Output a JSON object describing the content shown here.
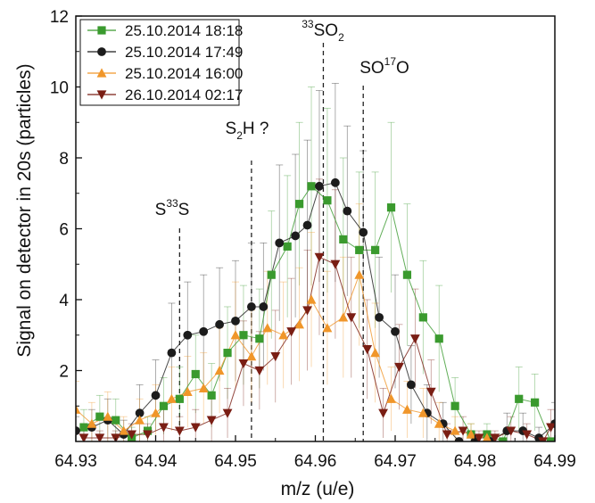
{
  "chart_data": {
    "type": "scatter",
    "title": "",
    "xlabel": "m/z (u/e)",
    "ylabel": "Signal on detector in 20s (particles)",
    "xlim": [
      64.93,
      64.99
    ],
    "ylim": [
      0,
      12
    ],
    "x_ticks": [
      64.93,
      64.94,
      64.95,
      64.96,
      64.97,
      64.98,
      64.99
    ],
    "x_tick_labels": [
      "64.93",
      "64.94",
      "64.95",
      "64.96",
      "64.97",
      "64.98",
      "64.99"
    ],
    "y_ticks": [
      2,
      4,
      6,
      8,
      10,
      12
    ],
    "y_tick_labels": [
      "2",
      "4",
      "6",
      "8",
      "10",
      "12"
    ],
    "grid": false,
    "legend_position": "top-left",
    "series": [
      {
        "name": "25.10.2014 18:18",
        "color": "#3a9a2e",
        "marker": "square",
        "points": [
          [
            64.931,
            0.4
          ],
          [
            64.933,
            0.7
          ],
          [
            64.935,
            0.6
          ],
          [
            64.937,
            0.1
          ],
          [
            64.939,
            0.3
          ],
          [
            64.941,
            1.0
          ],
          [
            64.943,
            1.2
          ],
          [
            64.945,
            1.9
          ],
          [
            64.947,
            1.3
          ],
          [
            64.949,
            2.5
          ],
          [
            64.951,
            3.0
          ],
          [
            64.953,
            2.9
          ],
          [
            64.9545,
            4.7
          ],
          [
            64.9565,
            5.5
          ],
          [
            64.958,
            6.7
          ],
          [
            64.9595,
            7.2
          ],
          [
            64.9615,
            6.8
          ],
          [
            64.9635,
            5.7
          ],
          [
            64.9655,
            5.4
          ],
          [
            64.9675,
            5.4
          ],
          [
            64.9695,
            6.6
          ],
          [
            64.9715,
            4.7
          ],
          [
            64.9735,
            3.5
          ],
          [
            64.9755,
            2.9
          ],
          [
            64.9775,
            1.0
          ],
          [
            64.9795,
            0.2
          ],
          [
            64.9815,
            0.2
          ],
          [
            64.9835,
            0.0
          ],
          [
            64.9855,
            1.2
          ],
          [
            64.9875,
            1.1
          ],
          [
            64.9895,
            0.0
          ]
        ],
        "errors": [
          0.5,
          0.6,
          0.6,
          0.3,
          0.4,
          0.8,
          0.9,
          1.1,
          0.9,
          1.3,
          1.4,
          1.4,
          1.8,
          2.0,
          2.3,
          2.8,
          2.6,
          2.3,
          2.2,
          2.2,
          2.4,
          2.0,
          1.6,
          1.5,
          0.8,
          0.3,
          0.3,
          0.2,
          0.9,
          0.8,
          0.1
        ]
      },
      {
        "name": "25.10.2014 17:49",
        "color": "#1c1c1c",
        "marker": "circle",
        "points": [
          [
            64.93,
            0.3
          ],
          [
            64.932,
            0.4
          ],
          [
            64.934,
            0.6
          ],
          [
            64.936,
            0.2
          ],
          [
            64.938,
            0.8
          ],
          [
            64.94,
            1.3
          ],
          [
            64.942,
            2.5
          ],
          [
            64.944,
            3.0
          ],
          [
            64.946,
            3.1
          ],
          [
            64.948,
            3.3
          ],
          [
            64.95,
            3.4
          ],
          [
            64.952,
            3.8
          ],
          [
            64.9535,
            3.8
          ],
          [
            64.9555,
            5.6
          ],
          [
            64.9575,
            5.8
          ],
          [
            64.959,
            6.1
          ],
          [
            64.9605,
            7.2
          ],
          [
            64.9625,
            7.3
          ],
          [
            64.964,
            6.5
          ],
          [
            64.966,
            5.9
          ],
          [
            64.968,
            3.5
          ],
          [
            64.97,
            3.1
          ],
          [
            64.972,
            1.6
          ],
          [
            64.974,
            0.8
          ],
          [
            64.976,
            0.5
          ],
          [
            64.978,
            0.0
          ],
          [
            64.98,
            0.0
          ],
          [
            64.982,
            0.0
          ],
          [
            64.984,
            0.3
          ],
          [
            64.986,
            0.3
          ],
          [
            64.988,
            0.1
          ],
          [
            64.99,
            0.5
          ]
        ],
        "errors": [
          0.4,
          0.5,
          0.6,
          0.4,
          0.8,
          1.0,
          1.4,
          1.5,
          1.6,
          1.6,
          1.7,
          1.8,
          1.8,
          2.2,
          2.3,
          2.4,
          2.7,
          2.8,
          2.4,
          2.3,
          1.7,
          1.6,
          1.1,
          0.8,
          0.6,
          0.1,
          0.1,
          0.1,
          0.5,
          0.5,
          0.3,
          0.6
        ]
      },
      {
        "name": "25.10.2014 16:00",
        "color": "#f0962a",
        "marker": "triangle-up",
        "points": [
          [
            64.93,
            0.9
          ],
          [
            64.932,
            0.5
          ],
          [
            64.934,
            0.7
          ],
          [
            64.936,
            0.3
          ],
          [
            64.938,
            0.6
          ],
          [
            64.94,
            0.8
          ],
          [
            64.942,
            1.2
          ],
          [
            64.944,
            1.4
          ],
          [
            64.946,
            1.5
          ],
          [
            64.948,
            2.0
          ],
          [
            64.95,
            3.0
          ],
          [
            64.952,
            2.4
          ],
          [
            64.954,
            3.2
          ],
          [
            64.956,
            3.0
          ],
          [
            64.958,
            3.3
          ],
          [
            64.9595,
            4.0
          ],
          [
            64.9615,
            3.2
          ],
          [
            64.9635,
            3.5
          ],
          [
            64.9655,
            4.7
          ],
          [
            64.9675,
            2.5
          ],
          [
            64.9695,
            1.2
          ],
          [
            64.9715,
            0.9
          ],
          [
            64.9735,
            0.8
          ],
          [
            64.9755,
            0.5
          ],
          [
            64.9775,
            0.3
          ],
          [
            64.9795,
            0.2
          ],
          [
            64.9815,
            0.1
          ]
        ],
        "errors": [
          0.8,
          0.6,
          0.7,
          0.4,
          0.6,
          0.8,
          0.9,
          1.0,
          1.0,
          1.2,
          1.5,
          1.3,
          1.6,
          1.5,
          1.6,
          1.9,
          1.6,
          1.7,
          2.0,
          1.4,
          0.9,
          0.8,
          0.7,
          0.6,
          0.4,
          0.3,
          0.2
        ]
      },
      {
        "name": "26.10.2014 02:17",
        "color": "#7a1e14",
        "marker": "triangle-down",
        "points": [
          [
            64.931,
            0.1
          ],
          [
            64.933,
            0.1
          ],
          [
            64.935,
            0.1
          ],
          [
            64.937,
            0.2
          ],
          [
            64.939,
            0.2
          ],
          [
            64.941,
            0.4
          ],
          [
            64.943,
            0.3
          ],
          [
            64.945,
            0.4
          ],
          [
            64.947,
            0.6
          ],
          [
            64.949,
            0.8
          ],
          [
            64.951,
            2.2
          ],
          [
            64.953,
            2.0
          ],
          [
            64.955,
            2.4
          ],
          [
            64.957,
            3.1
          ],
          [
            64.959,
            3.7
          ],
          [
            64.9605,
            5.2
          ],
          [
            64.9625,
            5.0
          ],
          [
            64.9645,
            3.5
          ],
          [
            64.9665,
            2.6
          ],
          [
            64.9685,
            0.8
          ],
          [
            64.9705,
            2.1
          ],
          [
            64.9725,
            2.9
          ],
          [
            64.9745,
            1.4
          ],
          [
            64.9765,
            0.2
          ],
          [
            64.9785,
            0.3
          ],
          [
            64.9805,
            0.1
          ],
          [
            64.9825,
            0.1
          ],
          [
            64.9845,
            0.3
          ],
          [
            64.9865,
            0.2
          ],
          [
            64.9885,
            0.0
          ],
          [
            64.9895,
            0.4
          ]
        ],
        "errors": [
          0.2,
          0.2,
          0.2,
          0.3,
          0.3,
          0.5,
          0.4,
          0.5,
          0.6,
          0.7,
          1.2,
          1.1,
          1.3,
          1.5,
          1.7,
          2.2,
          2.1,
          1.7,
          1.4,
          0.7,
          1.2,
          1.4,
          0.9,
          0.3,
          0.4,
          0.2,
          0.2,
          0.4,
          0.3,
          0.1,
          0.5
        ]
      }
    ],
    "annotations": [
      {
        "base": "S",
        "sup": "33",
        "tail": "S",
        "x": 64.943
      },
      {
        "base": "S",
        "sub": "2",
        "tail": "H ?",
        "x": 64.952
      },
      {
        "base": "",
        "sup": "33",
        "tail": "SO",
        "sub2": "2",
        "x": 64.961
      },
      {
        "base": "SO",
        "sup": "17",
        "tail": "O",
        "x": 64.966
      }
    ]
  }
}
